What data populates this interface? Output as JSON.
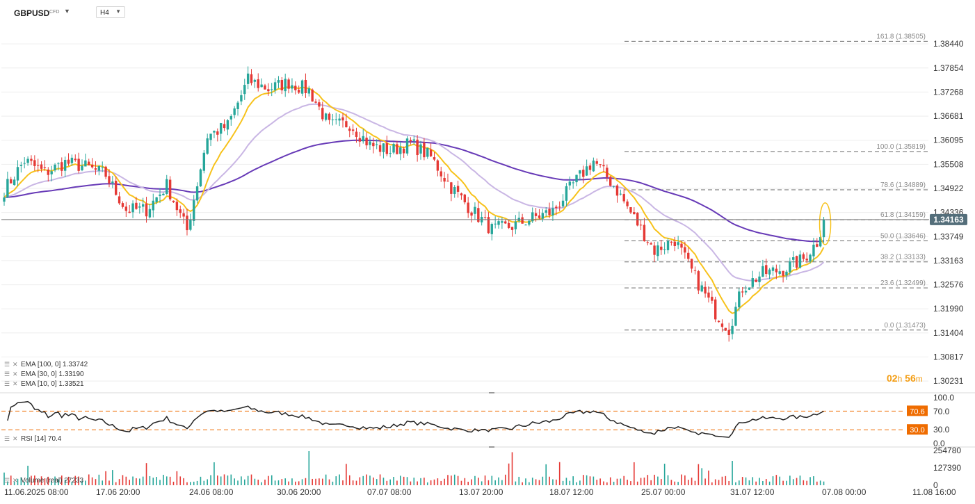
{
  "header": {
    "symbol": "GBPUSD",
    "tag": "CFD",
    "timeframe": "H4"
  },
  "legend": {
    "ema100": "EMA [100, 0] 1.33742",
    "ema30": "EMA [30, 0] 1.33190",
    "ema10": "EMA [10, 0] 1.33521",
    "rsi": "RSI [14] 70.4",
    "volume": "Volume (real) 27233"
  },
  "countdown": {
    "hours": "02",
    "h": "h",
    "minutes": "56",
    "m": "m"
  },
  "colors": {
    "up": "#26a69a",
    "down": "#e53935",
    "ema100": "#673ab7",
    "ema30": "#c9b6e4",
    "ema10": "#f7c21b",
    "price_tag": "#546e7a",
    "rsi_level": "#ef6c00",
    "grid": "#eeeeee",
    "fib": "#aaaaaa"
  },
  "chart_data": [
    {
      "type": "candlestick",
      "title": "GBPUSD CFD H4",
      "current_price": 1.34163,
      "current_price_label": "1.34163",
      "y_ticks": [
        "1.38440",
        "1.37854",
        "1.37268",
        "1.36681",
        "1.36095",
        "1.35508",
        "1.34922",
        "1.34336",
        "1.33749",
        "1.33163",
        "1.32576",
        "1.31990",
        "1.31404",
        "1.30817",
        "1.30231"
      ],
      "ylim": [
        1.3003,
        1.389
      ],
      "x_ticks": [
        "11.06.2025  08:00",
        "17.06  20:00",
        "24.06  08:00",
        "30.06  20:00",
        "07.07  08:00",
        "13.07  20:00",
        "18.07  12:00",
        "25.07  00:00",
        "31.07  12:00",
        "07.08  00:00",
        "11.08  16:00"
      ],
      "path_anchors": [
        [
          0,
          1.3488
        ],
        [
          6,
          1.356
        ],
        [
          12,
          1.353
        ],
        [
          18,
          1.3555
        ],
        [
          24,
          1.3545
        ],
        [
          30,
          1.3525
        ],
        [
          36,
          1.344
        ],
        [
          42,
          1.344
        ],
        [
          48,
          1.35
        ],
        [
          54,
          1.339
        ],
        [
          60,
          1.362
        ],
        [
          66,
          1.3645
        ],
        [
          72,
          1.3756
        ],
        [
          78,
          1.3735
        ],
        [
          84,
          1.375
        ],
        [
          90,
          1.3731
        ],
        [
          96,
          1.3645
        ],
        [
          102,
          1.365
        ],
        [
          108,
          1.3598
        ],
        [
          114,
          1.3583
        ],
        [
          120,
          1.3602
        ],
        [
          126,
          1.3568
        ],
        [
          132,
          1.3495
        ],
        [
          138,
          1.344
        ],
        [
          144,
          1.3392
        ],
        [
          150,
          1.34
        ],
        [
          156,
          1.342
        ],
        [
          162,
          1.3436
        ],
        [
          168,
          1.3502
        ],
        [
          174,
          1.356
        ],
        [
          180,
          1.35
        ],
        [
          186,
          1.342
        ],
        [
          192,
          1.3341
        ],
        [
          198,
          1.3367
        ],
        [
          204,
          1.3275
        ],
        [
          210,
          1.319
        ],
        [
          214,
          1.315
        ],
        [
          218,
          1.325
        ],
        [
          224,
          1.3285
        ],
        [
          230,
          1.3295
        ],
        [
          236,
          1.332
        ],
        [
          240,
          1.3362
        ],
        [
          242,
          1.3416
        ]
      ],
      "fibonacci": {
        "levels": [
          {
            "label": "161.8 (1.38505)",
            "value": 1.38505
          },
          {
            "label": "100.0 (1.35819)",
            "value": 1.35819
          },
          {
            "label": "78.6 (1.34889)",
            "value": 1.34889
          },
          {
            "label": "61.8 (1.34159)",
            "value": 1.34159
          },
          {
            "label": "50.0 (1.33646)",
            "value": 1.33646
          },
          {
            "label": "38.2 (1.33133)",
            "value": 1.33133
          },
          {
            "label": "23.6 (1.32499)",
            "value": 1.32499
          },
          {
            "label": "0.0 (1.31473)",
            "value": 1.31473
          }
        ],
        "from_bar": 179
      },
      "series": [
        {
          "name": "EMA 100",
          "period": 100,
          "last": 1.33742
        },
        {
          "name": "EMA 30",
          "period": 30,
          "last": 1.3319
        },
        {
          "name": "EMA 10",
          "period": 10,
          "last": 1.33521
        }
      ]
    },
    {
      "type": "line",
      "title": "RSI [14]",
      "last": 70.4,
      "y_ticks": [
        "100.0",
        "70.0",
        "30.0",
        "0.0"
      ],
      "levels": [
        {
          "label": "70.6",
          "value": 70.6
        },
        {
          "label": "30.0",
          "value": 30.0
        }
      ],
      "ylim": [
        0,
        100
      ]
    },
    {
      "type": "bar",
      "title": "Volume (real)",
      "last": 27233,
      "y_ticks": [
        "254780",
        "127390",
        "0"
      ],
      "ylim": [
        0,
        254780
      ]
    }
  ]
}
